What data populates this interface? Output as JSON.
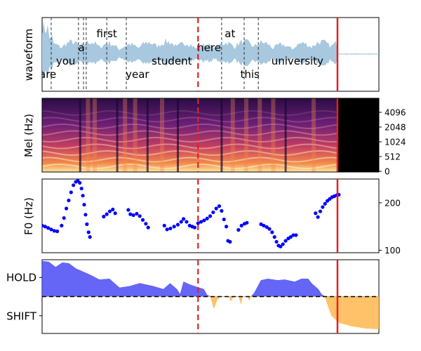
{
  "chart_data": [
    {
      "type": "area",
      "panel": "waveform",
      "ylabel": "waveform",
      "xlim": [
        0,
        1
      ],
      "words": [
        {
          "text": "are",
          "x": 0.017,
          "row": 3
        },
        {
          "text": "you",
          "x": 0.07,
          "row": 2
        },
        {
          "text": "a",
          "x": 0.117,
          "row": 1
        },
        {
          "text": "first",
          "x": 0.192,
          "row": 0
        },
        {
          "text": "year",
          "x": 0.283,
          "row": 3
        },
        {
          "text": "student",
          "x": 0.385,
          "row": 2
        },
        {
          "text": "here",
          "x": 0.496,
          "row": 1
        },
        {
          "text": "at",
          "x": 0.558,
          "row": 0
        },
        {
          "text": "this",
          "x": 0.617,
          "row": 3
        },
        {
          "text": "university",
          "x": 0.758,
          "row": 2
        }
      ],
      "word_boundaries": [
        0.027,
        0.108,
        0.123,
        0.131,
        0.192,
        0.25,
        0.533,
        0.6,
        0.642
      ],
      "current_time": 0.463,
      "prediction_time": 0.877,
      "audio_end": 0.877
    },
    {
      "type": "heatmap",
      "panel": "mel",
      "ylabel": "Mel (Hz)",
      "y_ticks": [
        "0",
        "512",
        "1024",
        "2048",
        "4096"
      ],
      "current_time": 0.463,
      "prediction_time": 0.877,
      "audio_end": 0.877
    },
    {
      "type": "scatter",
      "panel": "f0",
      "ylabel": "F0 (Hz)",
      "y_ticks": [
        "100",
        "200"
      ],
      "ylim": [
        95,
        250
      ],
      "series": [
        {
          "points": [
            [
              0.0,
              152
            ],
            [
              0.009,
              150
            ],
            [
              0.018,
              147
            ],
            [
              0.027,
              144
            ],
            [
              0.036,
              141
            ],
            [
              0.045,
              140
            ],
            [
              0.058,
              152
            ],
            [
              0.065,
              168
            ],
            [
              0.072,
              188
            ],
            [
              0.079,
              205
            ],
            [
              0.086,
              222
            ],
            [
              0.093,
              237
            ],
            [
              0.1,
              244
            ],
            [
              0.106,
              246
            ],
            [
              0.112,
              242
            ],
            [
              0.117,
              230
            ],
            [
              0.121,
              215
            ],
            [
              0.125,
              196
            ],
            [
              0.129,
              175
            ],
            [
              0.133,
              155
            ],
            [
              0.138,
              138
            ],
            [
              0.142,
              128
            ],
            [
              0.183,
              171
            ],
            [
              0.192,
              176
            ],
            [
              0.201,
              182
            ],
            [
              0.21,
              186
            ],
            [
              0.217,
              178
            ],
            [
              0.256,
              185
            ],
            [
              0.262,
              176
            ],
            [
              0.271,
              174
            ],
            [
              0.281,
              177
            ],
            [
              0.29,
              172
            ],
            [
              0.299,
              164
            ],
            [
              0.308,
              156
            ],
            [
              0.315,
              148
            ],
            [
              0.363,
              152
            ],
            [
              0.371,
              144
            ],
            [
              0.381,
              146
            ],
            [
              0.392,
              150
            ],
            [
              0.403,
              154
            ],
            [
              0.413,
              160
            ],
            [
              0.42,
              166
            ],
            [
              0.429,
              160
            ],
            [
              0.438,
              152
            ],
            [
              0.446,
              150
            ],
            [
              0.453,
              148
            ],
            [
              0.463,
              157
            ],
            [
              0.472,
              160
            ],
            [
              0.481,
              163
            ],
            [
              0.49,
              167
            ],
            [
              0.499,
              172
            ],
            [
              0.508,
              180
            ],
            [
              0.517,
              188
            ],
            [
              0.526,
              193
            ],
            [
              0.533,
              183
            ],
            [
              0.54,
              165
            ],
            [
              0.547,
              150
            ],
            [
              0.552,
              120
            ],
            [
              0.558,
              118
            ],
            [
              0.583,
              143
            ],
            [
              0.592,
              152
            ],
            [
              0.601,
              156
            ],
            [
              0.608,
              158
            ],
            [
              0.65,
              155
            ],
            [
              0.658,
              152
            ],
            [
              0.667,
              149
            ],
            [
              0.675,
              145
            ],
            [
              0.683,
              138
            ],
            [
              0.69,
              128
            ],
            [
              0.696,
              118
            ],
            [
              0.702,
              110
            ],
            [
              0.708,
              108
            ],
            [
              0.715,
              113
            ],
            [
              0.723,
              120
            ],
            [
              0.731,
              125
            ],
            [
              0.738,
              128
            ],
            [
              0.746,
              132
            ],
            [
              0.754,
              132
            ],
            [
              0.812,
              178
            ],
            [
              0.819,
              170
            ],
            [
              0.826,
              182
            ],
            [
              0.833,
              191
            ],
            [
              0.84,
              198
            ],
            [
              0.847,
              204
            ],
            [
              0.854,
              208
            ],
            [
              0.861,
              212
            ],
            [
              0.868,
              214
            ],
            [
              0.875,
              216
            ],
            [
              0.881,
              217
            ]
          ]
        }
      ],
      "current_time": 0.463,
      "prediction_time": 0.877
    },
    {
      "type": "area",
      "panel": "turn-taking",
      "y_ticks": [
        "HOLD",
        "SHIFT"
      ],
      "threshold": 0.5,
      "hold_series": [
        [
          0.0,
          0.98
        ],
        [
          0.02,
          0.97
        ],
        [
          0.04,
          0.9
        ],
        [
          0.06,
          0.96
        ],
        [
          0.08,
          0.95
        ],
        [
          0.1,
          0.88
        ],
        [
          0.12,
          0.84
        ],
        [
          0.14,
          0.8
        ],
        [
          0.17,
          0.73
        ],
        [
          0.2,
          0.74
        ],
        [
          0.23,
          0.62
        ],
        [
          0.26,
          0.64
        ],
        [
          0.29,
          0.68
        ],
        [
          0.33,
          0.64
        ],
        [
          0.36,
          0.6
        ],
        [
          0.38,
          0.68
        ],
        [
          0.4,
          0.6
        ],
        [
          0.41,
          0.53
        ],
        [
          0.42,
          0.7
        ],
        [
          0.44,
          0.66
        ],
        [
          0.46,
          0.63
        ],
        [
          0.48,
          0.6
        ],
        [
          0.49,
          0.52
        ],
        [
          0.5,
          0.5
        ],
        [
          0.51,
          0.5
        ],
        [
          0.52,
          0.5
        ],
        [
          0.53,
          0.5
        ],
        [
          0.54,
          0.5
        ],
        [
          0.55,
          0.5
        ],
        [
          0.56,
          0.5
        ],
        [
          0.57,
          0.5
        ],
        [
          0.58,
          0.5
        ],
        [
          0.59,
          0.5
        ],
        [
          0.6,
          0.5
        ],
        [
          0.61,
          0.5
        ],
        [
          0.62,
          0.5
        ],
        [
          0.63,
          0.55
        ],
        [
          0.65,
          0.72
        ],
        [
          0.67,
          0.74
        ],
        [
          0.7,
          0.72
        ],
        [
          0.72,
          0.73
        ],
        [
          0.75,
          0.7
        ],
        [
          0.77,
          0.74
        ],
        [
          0.79,
          0.74
        ],
        [
          0.8,
          0.68
        ],
        [
          0.82,
          0.6
        ],
        [
          0.83,
          0.53
        ],
        [
          0.84,
          0.5
        ],
        [
          1.0,
          0.5
        ]
      ],
      "shift_series": [
        [
          0.0,
          0.5
        ],
        [
          0.5,
          0.5
        ],
        [
          0.505,
          0.42
        ],
        [
          0.51,
          0.34
        ],
        [
          0.515,
          0.4
        ],
        [
          0.52,
          0.46
        ],
        [
          0.53,
          0.5
        ],
        [
          0.555,
          0.5
        ],
        [
          0.56,
          0.44
        ],
        [
          0.565,
          0.48
        ],
        [
          0.57,
          0.5
        ],
        [
          0.585,
          0.5
        ],
        [
          0.59,
          0.4
        ],
        [
          0.595,
          0.5
        ],
        [
          0.61,
          0.5
        ],
        [
          0.615,
          0.45
        ],
        [
          0.62,
          0.5
        ],
        [
          0.84,
          0.5
        ],
        [
          0.85,
          0.36
        ],
        [
          0.86,
          0.24
        ],
        [
          0.88,
          0.15
        ],
        [
          0.92,
          0.1
        ],
        [
          0.96,
          0.07
        ],
        [
          1.0,
          0.06
        ]
      ],
      "current_time": 0.463,
      "prediction_time": 0.877
    }
  ],
  "colors": {
    "waveform": "#a8c8e0",
    "f0": "#0000ff",
    "hold": "#4b4bf5",
    "shift": "#ffb74d",
    "current_line": "#e62020",
    "prediction_line": "#e62020",
    "boundary": "#333333"
  }
}
